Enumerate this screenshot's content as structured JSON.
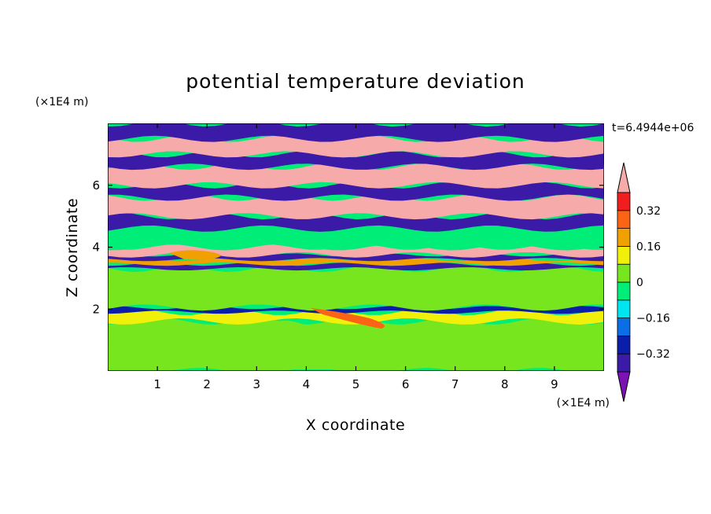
{
  "chart_data": {
    "type": "heatmap",
    "title": "potential temperature deviation",
    "xlabel": "X coordinate",
    "ylabel": "Z coordinate",
    "x_unit": "(×1E4 m)",
    "y_unit": "(×1E4 m)",
    "time_label": "t=6.4944e+06",
    "xlim": [
      0,
      10
    ],
    "ylim": [
      0,
      8
    ],
    "x_ticks": [
      1,
      2,
      3,
      4,
      5,
      6,
      7,
      8,
      9
    ],
    "y_ticks": [
      2,
      4,
      6
    ],
    "colorbar": {
      "levels": [
        -0.4,
        -0.32,
        -0.24,
        -0.16,
        -0.08,
        0,
        0.08,
        0.16,
        0.24,
        0.32,
        0.4
      ],
      "labels": [
        "0.32",
        "0.16",
        "0",
        "−0.16",
        "−0.32"
      ],
      "label_values": [
        0.32,
        0.16,
        0,
        -0.16,
        -0.32
      ],
      "colors": [
        "#7b12b4",
        "#3c1aa8",
        "#0a1eaa",
        "#0a6ee6",
        "#00e6f0",
        "#00ee78",
        "#78e61e",
        "#f0f00a",
        "#f0a000",
        "#fa6414",
        "#f01e1e",
        "#f7aaaa"
      ],
      "extend": "both"
    },
    "bands": [
      {
        "z": [
          0.0,
          1.6
        ],
        "value": 0.0
      },
      {
        "z": [
          1.6,
          1.9
        ],
        "value": 0.08
      },
      {
        "z": [
          1.9,
          2.05
        ],
        "value": -0.32
      },
      {
        "z": [
          2.05,
          3.3
        ],
        "value": 0.0
      },
      {
        "z": [
          3.3,
          3.45
        ],
        "value": -0.4
      },
      {
        "z": [
          3.45,
          3.6
        ],
        "value": 0.16
      },
      {
        "z": [
          3.6,
          3.75
        ],
        "value": -0.4
      },
      {
        "z": [
          3.75,
          4.0
        ],
        "value": 0.4
      },
      {
        "z": [
          4.0,
          4.6
        ],
        "value": -0.08
      },
      {
        "z": [
          4.6,
          5.0
        ],
        "value": -0.4
      },
      {
        "z": [
          5.0,
          5.6
        ],
        "value": 0.4
      },
      {
        "z": [
          5.6,
          6.0
        ],
        "value": -0.4
      },
      {
        "z": [
          6.0,
          6.6
        ],
        "value": 0.4
      },
      {
        "z": [
          6.6,
          7.0
        ],
        "value": -0.4
      },
      {
        "z": [
          7.0,
          7.5
        ],
        "value": 0.4
      },
      {
        "z": [
          7.5,
          8.0
        ],
        "value": -0.4
      }
    ]
  }
}
